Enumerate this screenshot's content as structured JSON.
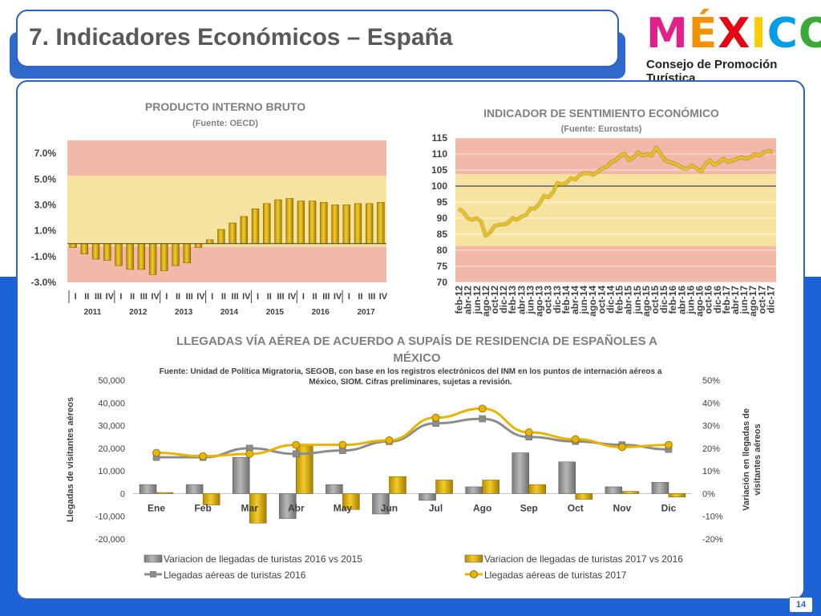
{
  "header": {
    "title": "7. Indicadores Económicos – España",
    "logo_text": "MÉXICO",
    "logo_subtitle": "Consejo de Promoción Turística"
  },
  "footer": {
    "page_number": "14"
  },
  "colors": {
    "accent_blue": "#1e63d6",
    "gold": "#e8b400",
    "gray_series": "#8c8c8c",
    "chart_title": "#7f7f7f"
  },
  "chart_data": [
    {
      "type": "bar",
      "title": "PRODUCTO INTERNO BRUTO",
      "subtitle": "(Fuente: OECD)",
      "ylim": [
        -3.0,
        8.0
      ],
      "yticks": [
        "-3.0%",
        "-1.0%",
        "1.0%",
        "3.0%",
        "5.0%",
        "7.0%"
      ],
      "quarter_labels": [
        "I",
        "II",
        "III",
        "IV"
      ],
      "years": [
        "2011",
        "2012",
        "2013",
        "2014",
        "2015",
        "2016",
        "2017"
      ],
      "values": [
        -0.3,
        -0.8,
        -1.2,
        -1.3,
        -1.7,
        -2.0,
        -2.0,
        -2.4,
        -2.1,
        -1.7,
        -1.5,
        -0.3,
        0.3,
        1.1,
        1.6,
        2.1,
        2.7,
        3.1,
        3.4,
        3.5,
        3.3,
        3.3,
        3.2,
        3.0,
        3.0,
        3.1,
        3.1,
        3.2
      ]
    },
    {
      "type": "line",
      "title": "INDICADOR DE SENTIMIENTO ECONÓMICO",
      "subtitle": "(Fuente: Eurostats)",
      "ylim": [
        70,
        115
      ],
      "yticks": [
        "70",
        "75",
        "80",
        "85",
        "90",
        "95",
        "100",
        "105",
        "110",
        "115"
      ],
      "reference_line": 100,
      "x_labels": [
        "feb-12",
        "abr-12",
        "jun-12",
        "ago-12",
        "oct-12",
        "dic-12",
        "feb-13",
        "abr-13",
        "jun-13",
        "ago-13",
        "oct-13",
        "dic-13",
        "feb-14",
        "abr-14",
        "jun-14",
        "ago-14",
        "oct-14",
        "dic-14",
        "feb-15",
        "abr-15",
        "jun-15",
        "ago-15",
        "oct-15",
        "dic-15",
        "feb-16",
        "abr-16",
        "jun-16",
        "ago-16",
        "oct-16",
        "dic-16",
        "feb-17",
        "abr-17",
        "jun-17",
        "ago-17",
        "oct-17",
        "dic-17"
      ],
      "values": [
        93,
        92,
        90,
        89.5,
        90,
        89,
        84.5,
        85.5,
        87.5,
        88,
        88,
        88.5,
        90,
        89.5,
        90.5,
        91,
        93,
        93,
        94.5,
        97,
        96.5,
        98,
        101,
        100.5,
        101,
        102.5,
        102,
        103.5,
        104,
        104,
        103.5,
        104.5,
        105.5,
        106,
        107.5,
        108,
        109.5,
        110,
        108,
        109,
        110.5,
        109.5,
        110,
        109.5,
        112,
        110,
        108,
        107.5,
        107,
        106.5,
        105.5,
        105.5,
        106.5,
        105.5,
        104.5,
        107,
        108,
        106.5,
        107.5,
        108.5,
        107.5,
        108,
        108.5,
        109,
        108.5,
        109,
        110,
        109.5,
        110.5,
        111,
        110.5
      ]
    },
    {
      "type": "bar+line",
      "title": "LLEGADAS VÍA AÉREA DE ACUERDO A SUPAÍS DE RESIDENCIA DE  ESPAÑOLES A MÉXICO",
      "source": "Fuente: Unidad de Política Migratoria, SEGOB, con base en los registros electrónicos del INM en los puntos de internación aéreos a México, SIOM. Cifras preliminares, sujetas a revisión.",
      "ylabel": "Llegadas de visitantes aéreos",
      "y2label": "Variación en llegadas de visitantes aéreos",
      "ylim": [
        -20000,
        50000
      ],
      "y2lim": [
        -20,
        50
      ],
      "yticks": [
        "-20,000",
        "-10,000",
        "0",
        "10,000",
        "20,000",
        "30,000",
        "40,000",
        "50,000"
      ],
      "y2ticks": [
        "-20%",
        "-10%",
        "0%",
        "10%",
        "20%",
        "30%",
        "40%",
        "50%"
      ],
      "categories": [
        "Ene",
        "Feb",
        "Mar",
        "Abr",
        "May",
        "Jun",
        "Jul",
        "Ago",
        "Sep",
        "Oct",
        "Nov",
        "Dic"
      ],
      "series": [
        {
          "name": "Variacion de llegadas de turistas  2016 vs 2015",
          "kind": "bar",
          "axis": "right",
          "color": "#8c8c8c",
          "values": [
            4,
            4,
            16,
            -11,
            4,
            -9,
            -3,
            3,
            18,
            14,
            3,
            5
          ]
        },
        {
          "name": "Variacion de llegadas de turistas  2017 vs 2016",
          "kind": "bar",
          "axis": "right",
          "color": "#e8b400",
          "values": [
            0.5,
            -5,
            -13,
            21,
            -7,
            7.5,
            6,
            6,
            4,
            -2.5,
            1,
            -1.5
          ]
        },
        {
          "name": "Llegadas aéreas de turistas 2016",
          "kind": "line",
          "axis": "left",
          "color": "#8c8c8c",
          "values": [
            16000,
            16000,
            20000,
            17500,
            19000,
            23000,
            31000,
            33000,
            25000,
            23000,
            21500,
            19500
          ]
        },
        {
          "name": "Llegadas aéreas de turistas 2017",
          "kind": "line",
          "axis": "left",
          "color": "#e8b400",
          "values": [
            18000,
            16500,
            17500,
            21500,
            21500,
            23500,
            33500,
            37500,
            27000,
            24000,
            20500,
            21500
          ]
        }
      ]
    }
  ]
}
